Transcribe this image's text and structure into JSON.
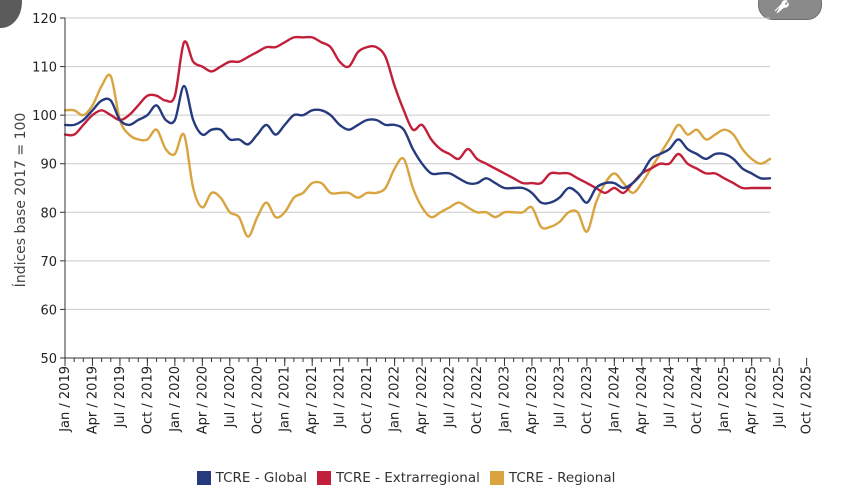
{
  "chart_data": {
    "type": "line",
    "title": "",
    "xlabel": "",
    "ylabel": "Índices base 2017 = 100",
    "ylim": [
      50,
      120
    ],
    "yticks": [
      50,
      60,
      70,
      80,
      90,
      100,
      110,
      120
    ],
    "x_start": "2019-01",
    "x_end": "2025-10",
    "x_ticks": [
      "Jan / 2019",
      "Apr / 2019",
      "Jul / 2019",
      "Oct / 2019",
      "Jan / 2020",
      "Apr / 2020",
      "Jul / 2020",
      "Oct / 2020",
      "Jan / 2021",
      "Apr / 2021",
      "Jul / 2021",
      "Oct / 2021",
      "Jan / 2022",
      "Apr / 2022",
      "Jul / 2022",
      "Oct / 2022",
      "Jan / 2023",
      "Apr / 2023",
      "Jul / 2023",
      "Oct / 2023",
      "Jan / 2024",
      "Apr / 2024",
      "Jul / 2024",
      "Oct / 2024",
      "Jan / 2025",
      "Apr / 2025",
      "Jul / 2025",
      "Oct / 2025"
    ],
    "grid": true,
    "legend_position": "bottom",
    "series": [
      {
        "name": "TCRE - Global",
        "color": "#263a7e",
        "values": [
          98,
          98,
          99,
          101,
          103,
          103,
          99,
          98,
          99,
          100,
          102,
          99,
          99,
          106,
          99,
          96,
          97,
          97,
          95,
          95,
          94,
          96,
          98,
          96,
          98,
          100,
          100,
          101,
          101,
          100,
          98,
          97,
          98,
          99,
          99,
          98,
          98,
          97,
          93,
          90,
          88,
          88,
          88,
          87,
          86,
          86,
          87,
          86,
          85,
          85,
          85,
          84,
          82,
          82,
          83,
          85,
          84,
          82,
          85,
          86,
          86,
          85,
          86,
          88,
          91,
          92,
          93,
          95,
          93,
          92,
          91,
          92,
          92,
          91,
          89,
          88,
          87,
          87
        ]
      },
      {
        "name": "TCRE - Extrarregional",
        "color": "#c21f3a",
        "values": [
          96,
          96,
          98,
          100,
          101,
          100,
          99,
          100,
          102,
          104,
          104,
          103,
          104,
          115,
          111,
          110,
          109,
          110,
          111,
          111,
          112,
          113,
          114,
          114,
          115,
          116,
          116,
          116,
          115,
          114,
          111,
          110,
          113,
          114,
          114,
          112,
          106,
          101,
          97,
          98,
          95,
          93,
          92,
          91,
          93,
          91,
          90,
          89,
          88,
          87,
          86,
          86,
          86,
          88,
          88,
          88,
          87,
          86,
          85,
          84,
          85,
          84,
          86,
          88,
          89,
          90,
          90,
          92,
          90,
          89,
          88,
          88,
          87,
          86,
          85,
          85,
          85,
          85
        ]
      },
      {
        "name": "TCRE - Regional",
        "color": "#d9a440",
        "values": [
          101,
          101,
          100,
          102,
          106,
          108,
          99,
          96,
          95,
          95,
          97,
          93,
          92,
          96,
          85,
          81,
          84,
          83,
          80,
          79,
          75,
          79,
          82,
          79,
          80,
          83,
          84,
          86,
          86,
          84,
          84,
          84,
          83,
          84,
          84,
          85,
          89,
          91,
          85,
          81,
          79,
          80,
          81,
          82,
          81,
          80,
          80,
          79,
          80,
          80,
          80,
          81,
          77,
          77,
          78,
          80,
          80,
          76,
          82,
          86,
          88,
          86,
          84,
          86,
          89,
          92,
          95,
          98,
          96,
          97,
          95,
          96,
          97,
          96,
          93,
          91,
          90,
          91
        ]
      }
    ]
  }
}
